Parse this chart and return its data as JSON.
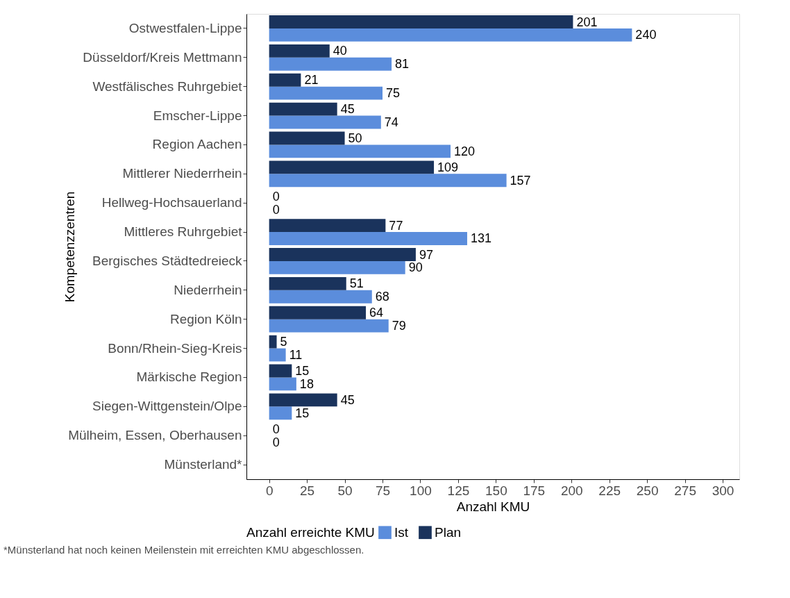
{
  "chart_data": {
    "type": "bar",
    "orientation": "horizontal",
    "xlabel": "Anzahl KMU",
    "ylabel": "Kompetenzzentren",
    "legend_title": "Anzahl erreichte KMU",
    "categories": [
      "Ostwestfalen-Lippe",
      "Düsseldorf/Kreis Mettmann",
      "Westfälisches Ruhrgebiet",
      "Emscher-Lippe",
      "Region Aachen",
      "Mittlerer Niederrhein",
      "Hellweg-Hochsauerland",
      "Mittleres Ruhrgebiet",
      "Bergisches Städtedreieck",
      "Niederrhein",
      "Region Köln",
      "Bonn/Rhein-Sieg-Kreis",
      "Märkische Region",
      "Siegen-Wittgenstein/Olpe",
      "Mülheim, Essen, Oberhausen",
      "Münsterland*"
    ],
    "series": [
      {
        "name": "Ist",
        "color": "#5b8ddc",
        "values": [
          240,
          81,
          75,
          74,
          120,
          157,
          0,
          131,
          90,
          68,
          79,
          11,
          18,
          15,
          0,
          null
        ]
      },
      {
        "name": "Plan",
        "color": "#1a335c",
        "values": [
          201,
          40,
          21,
          45,
          50,
          109,
          0,
          77,
          97,
          51,
          64,
          5,
          15,
          45,
          0,
          null
        ]
      }
    ],
    "xlim": [
      -15,
      311
    ],
    "xticks": [
      0,
      25,
      50,
      75,
      100,
      125,
      150,
      175,
      200,
      225,
      250,
      275,
      300
    ],
    "grid": false,
    "legend": "bottom",
    "data_labels": true,
    "annotations": [
      "*Münsterland hat noch keinen Meilenstein mit erreichten KMU abgeschlossen."
    ]
  }
}
